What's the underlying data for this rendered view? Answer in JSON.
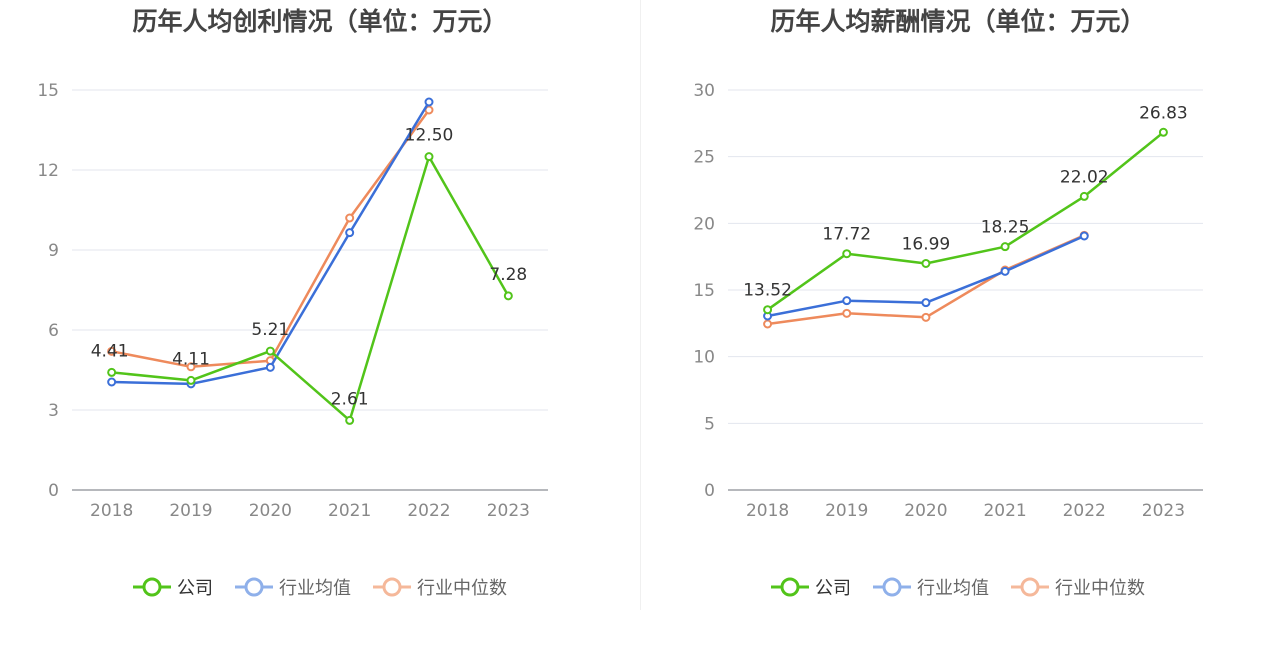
{
  "colors": {
    "company": "#52c41a",
    "avg": "#3b6fd8",
    "median": "#ee8a5c"
  },
  "chart_data": [
    {
      "type": "line",
      "title": "历年人均创利情况（单位：万元）",
      "categories": [
        "2018",
        "2019",
        "2020",
        "2021",
        "2022",
        "2023"
      ],
      "ylim": [
        0,
        15
      ],
      "yticks": [
        0,
        3,
        6,
        9,
        12,
        15
      ],
      "series": [
        {
          "key": "company",
          "name": "公司",
          "values": [
            4.41,
            4.11,
            5.21,
            2.61,
            12.5,
            7.28
          ],
          "labels": [
            "4.41",
            "4.11",
            "5.21",
            "2.61",
            "12.50",
            "7.28"
          ]
        },
        {
          "key": "avg",
          "name": "行业均值",
          "values": [
            4.05,
            3.98,
            4.6,
            9.65,
            14.55,
            null
          ]
        },
        {
          "key": "median",
          "name": "行业中位数",
          "values": [
            5.2,
            4.62,
            4.85,
            10.2,
            14.25,
            null
          ]
        }
      ],
      "legend": "bottom"
    },
    {
      "type": "line",
      "title": "历年人均薪酬情况（单位：万元）",
      "categories": [
        "2018",
        "2019",
        "2020",
        "2021",
        "2022",
        "2023"
      ],
      "ylim": [
        0,
        30
      ],
      "yticks": [
        0,
        5,
        10,
        15,
        20,
        25,
        30
      ],
      "series": [
        {
          "key": "company",
          "name": "公司",
          "values": [
            13.52,
            17.72,
            16.99,
            18.25,
            22.02,
            26.83
          ],
          "labels": [
            "13.52",
            "17.72",
            "16.99",
            "18.25",
            "22.02",
            "26.83"
          ]
        },
        {
          "key": "avg",
          "name": "行业均值",
          "values": [
            13.05,
            14.2,
            14.05,
            16.4,
            19.05,
            null
          ]
        },
        {
          "key": "median",
          "name": "行业中位数",
          "values": [
            12.45,
            13.25,
            12.95,
            16.5,
            19.1,
            null
          ]
        }
      ],
      "legend": "bottom"
    }
  ]
}
